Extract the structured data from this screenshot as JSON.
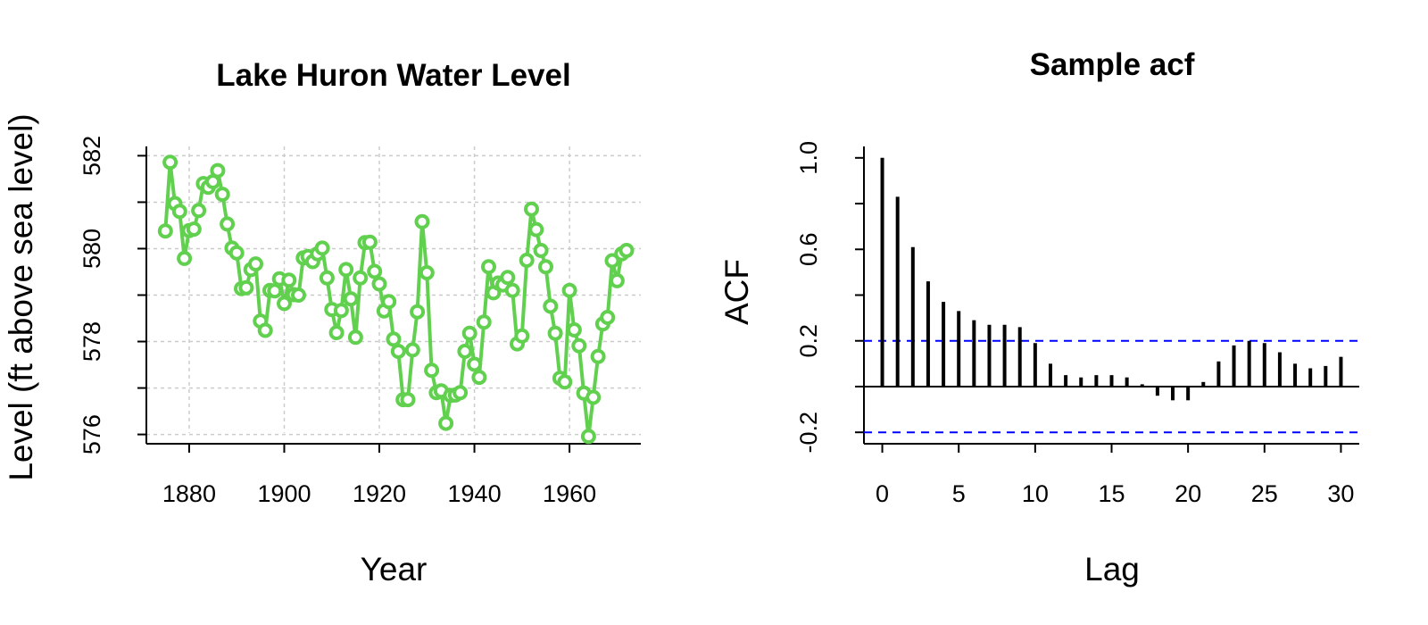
{
  "chart_data": [
    {
      "type": "line",
      "title": "Lake Huron Water Level",
      "xlabel": "Year",
      "ylabel": "Level (ft above sea level)",
      "xlim": [
        1871,
        1975
      ],
      "ylim": [
        575.8,
        582.2
      ],
      "xticks": [
        1880,
        1900,
        1920,
        1940,
        1960
      ],
      "yticks": [
        576,
        578,
        580,
        582
      ],
      "grid": true,
      "series_color": "#61D04F",
      "marker": "open-circle",
      "x": [
        1875,
        1876,
        1877,
        1878,
        1879,
        1880,
        1881,
        1882,
        1883,
        1884,
        1885,
        1886,
        1887,
        1888,
        1889,
        1890,
        1891,
        1892,
        1893,
        1894,
        1895,
        1896,
        1897,
        1898,
        1899,
        1900,
        1901,
        1902,
        1903,
        1904,
        1905,
        1906,
        1907,
        1908,
        1909,
        1910,
        1911,
        1912,
        1913,
        1914,
        1915,
        1916,
        1917,
        1918,
        1919,
        1920,
        1921,
        1922,
        1923,
        1924,
        1925,
        1926,
        1927,
        1928,
        1929,
        1930,
        1931,
        1932,
        1933,
        1934,
        1935,
        1936,
        1937,
        1938,
        1939,
        1940,
        1941,
        1942,
        1943,
        1944,
        1945,
        1946,
        1947,
        1948,
        1949,
        1950,
        1951,
        1952,
        1953,
        1954,
        1955,
        1956,
        1957,
        1958,
        1959,
        1960,
        1961,
        1962,
        1963,
        1964,
        1965,
        1966,
        1967,
        1968,
        1969,
        1970,
        1971,
        1972
      ],
      "y": [
        580.38,
        581.86,
        580.97,
        580.8,
        579.79,
        580.39,
        580.42,
        580.82,
        581.4,
        581.32,
        581.44,
        581.68,
        581.17,
        580.53,
        580.01,
        579.91,
        579.14,
        579.16,
        579.55,
        579.67,
        578.44,
        578.24,
        579.1,
        579.09,
        579.35,
        578.82,
        579.32,
        579.01,
        579.0,
        579.8,
        579.83,
        579.72,
        579.89,
        580.01,
        579.37,
        578.69,
        578.19,
        578.67,
        579.55,
        578.92,
        578.09,
        579.37,
        580.13,
        580.14,
        579.51,
        579.24,
        578.66,
        578.86,
        578.05,
        577.79,
        576.75,
        576.75,
        577.82,
        578.64,
        580.58,
        579.48,
        577.38,
        576.9,
        576.94,
        576.24,
        576.84,
        576.85,
        576.9,
        577.79,
        578.18,
        577.51,
        577.23,
        578.42,
        579.61,
        579.05,
        579.26,
        579.22,
        579.38,
        579.1,
        577.95,
        578.12,
        579.75,
        580.85,
        580.41,
        579.96,
        579.61,
        578.76,
        578.18,
        577.21,
        577.13,
        579.1,
        578.25,
        577.91,
        576.89,
        575.96,
        576.8,
        577.68,
        578.38,
        578.52,
        579.74,
        579.31,
        579.89,
        579.96
      ]
    },
    {
      "type": "bar",
      "title": "Sample acf",
      "xlabel": "Lag",
      "ylabel": "ACF",
      "xlim": [
        -1.2,
        31.2
      ],
      "ylim": [
        -0.25,
        1.05
      ],
      "xticks": [
        0,
        5,
        10,
        15,
        20,
        25,
        30
      ],
      "yticks": [
        -0.2,
        0.2,
        0.6,
        1.0
      ],
      "ytick_labels": [
        "-0.2",
        "0.2",
        "0.6",
        "1.0"
      ],
      "confidence_band": 0.2,
      "confidence_color": "#0000FF",
      "lags": [
        0,
        1,
        2,
        3,
        4,
        5,
        6,
        7,
        8,
        9,
        10,
        11,
        12,
        13,
        14,
        15,
        16,
        17,
        18,
        19,
        20,
        21,
        22,
        23,
        24,
        25,
        26,
        27,
        28,
        29,
        30
      ],
      "values": [
        1.0,
        0.83,
        0.61,
        0.46,
        0.37,
        0.33,
        0.29,
        0.27,
        0.27,
        0.26,
        0.19,
        0.1,
        0.05,
        0.04,
        0.05,
        0.05,
        0.04,
        0.01,
        -0.04,
        -0.06,
        -0.06,
        0.02,
        0.11,
        0.18,
        0.2,
        0.19,
        0.15,
        0.1,
        0.08,
        0.09,
        0.13
      ]
    }
  ]
}
